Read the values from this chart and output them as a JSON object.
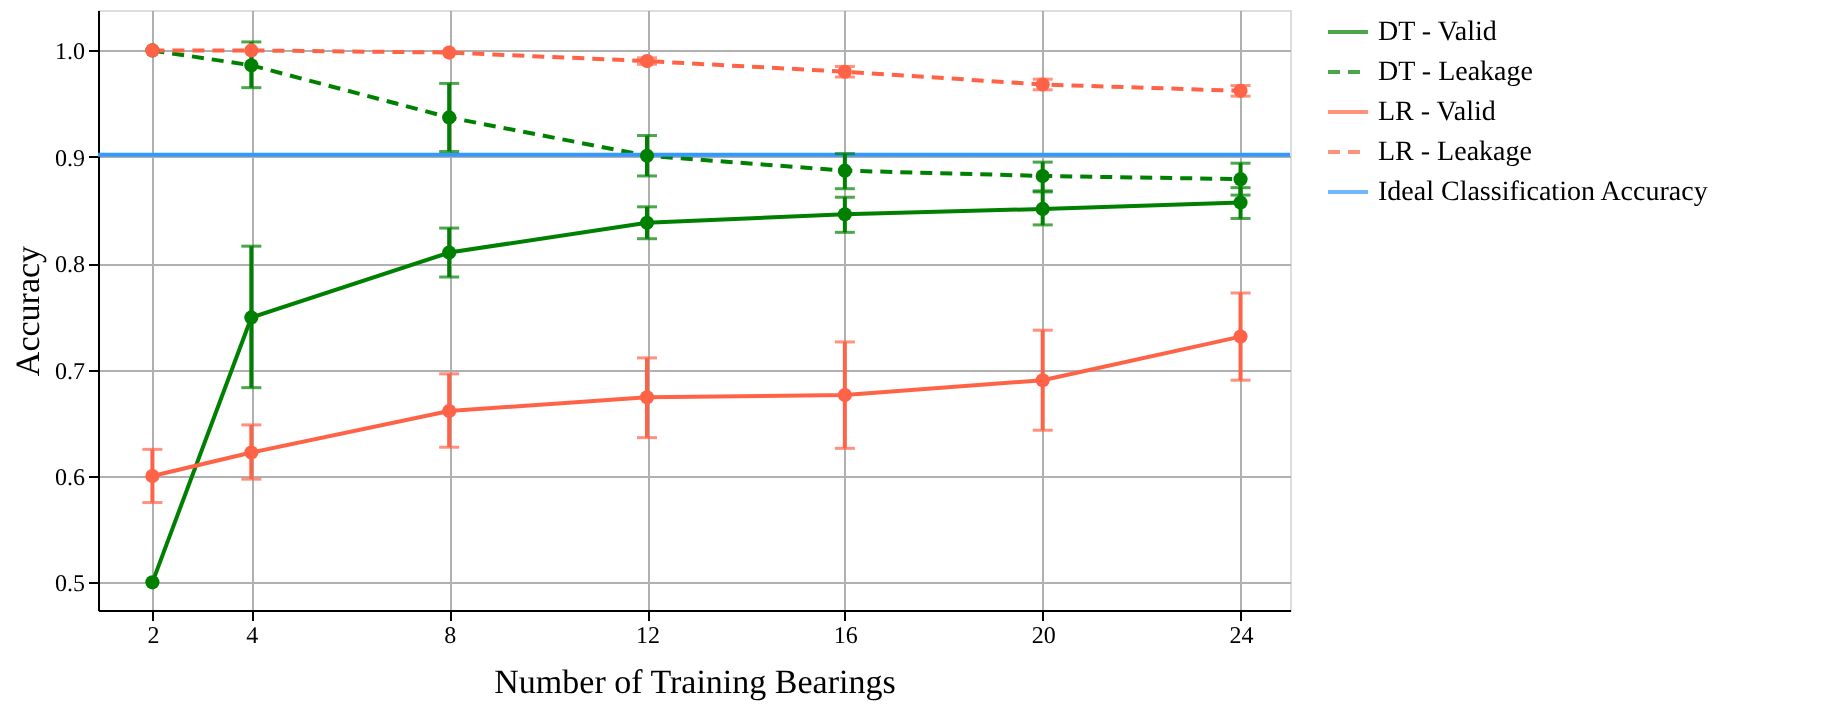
{
  "chart_data": {
    "type": "line",
    "xlabel": "Number of Training Bearings",
    "ylabel": "Accuracy",
    "x": [
      2,
      4,
      8,
      12,
      16,
      20,
      24
    ],
    "xlim": [
      0.9,
      25
    ],
    "xticks": [
      2,
      4,
      8,
      12,
      16,
      20,
      24
    ],
    "ylim": [
      0.474,
      1.038
    ],
    "yticks": [
      0.5,
      0.6,
      0.7,
      0.8,
      0.9,
      {
        "value": 1.0,
        "label": "1.0"
      }
    ],
    "grid": true,
    "legend": "right",
    "marker": "circle",
    "series": [
      {
        "name": "DT - Valid",
        "color": "#008000",
        "line_style": "solid",
        "values": [
          0.5,
          0.749,
          0.81,
          0.838,
          0.846,
          0.851,
          0.857
        ],
        "errors": [
          null,
          [
            0.683,
            0.816
          ],
          [
            0.787,
            0.833
          ],
          [
            0.823,
            0.853
          ],
          [
            0.829,
            0.862
          ],
          [
            0.836,
            0.867
          ],
          [
            0.842,
            0.871
          ]
        ]
      },
      {
        "name": "DT - Leakage",
        "color": "#008000",
        "line_style": "dashed",
        "values": [
          1.0,
          0.986,
          0.937,
          0.901,
          0.887,
          0.882,
          0.879
        ],
        "errors": [
          null,
          [
            0.965,
            1.008
          ],
          [
            0.905,
            0.969
          ],
          [
            0.882,
            0.92
          ],
          [
            0.87,
            0.903
          ],
          [
            0.868,
            0.895
          ],
          [
            0.864,
            0.894
          ]
        ]
      },
      {
        "name": "LR - Valid",
        "color": "#ff6347",
        "line_style": "solid",
        "values": [
          0.6,
          0.622,
          0.661,
          0.674,
          0.676,
          0.69,
          0.731
        ],
        "errors": [
          [
            0.575,
            0.625
          ],
          [
            0.597,
            0.648
          ],
          [
            0.627,
            0.696
          ],
          [
            0.636,
            0.711
          ],
          [
            0.626,
            0.726
          ],
          [
            0.643,
            0.737
          ],
          [
            0.69,
            0.772
          ]
        ]
      },
      {
        "name": "LR - Leakage",
        "color": "#ff6347",
        "line_style": "dashed",
        "values": [
          1.0,
          1.0,
          0.998,
          0.99,
          0.98,
          0.968,
          0.962
        ],
        "errors": [
          null,
          null,
          null,
          [
            0.987,
            0.993
          ],
          [
            0.975,
            0.985
          ],
          [
            0.963,
            0.973
          ],
          [
            0.957,
            0.967
          ]
        ]
      }
    ],
    "ref_lines": [
      {
        "axis": "y",
        "value": 0.902,
        "label": "Ideal Classification Accuracy",
        "color": "#3399ff",
        "line_style": "solid"
      }
    ]
  }
}
